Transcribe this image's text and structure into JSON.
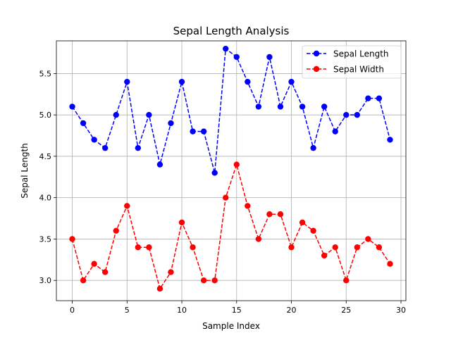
{
  "chart_data": {
    "type": "line",
    "title": "Sepal Length Analysis",
    "xlabel": "Sample Index",
    "ylabel": "Sepal Length",
    "xlim": [
      -1.45,
      30.45
    ],
    "ylim": [
      2.755,
      5.895
    ],
    "xticks": [
      0,
      5,
      10,
      15,
      20,
      25,
      30
    ],
    "yticks": [
      3.0,
      3.5,
      4.0,
      4.5,
      5.0,
      5.5
    ],
    "grid": true,
    "legend_position": "top-right",
    "x": [
      0,
      1,
      2,
      3,
      4,
      5,
      6,
      7,
      8,
      9,
      10,
      11,
      12,
      13,
      14,
      15,
      16,
      17,
      18,
      19,
      20,
      21,
      22,
      23,
      24,
      25,
      26,
      27,
      28,
      29
    ],
    "series": [
      {
        "name": "Sepal Length",
        "color": "#0000ff",
        "line_style": "dashed",
        "marker": "circle",
        "values": [
          5.1,
          4.9,
          4.7,
          4.6,
          5.0,
          5.4,
          4.6,
          5.0,
          4.4,
          4.9,
          5.4,
          4.8,
          4.8,
          4.3,
          5.8,
          5.7,
          5.4,
          5.1,
          5.7,
          5.1,
          5.4,
          5.1,
          4.6,
          5.1,
          4.8,
          5.0,
          5.0,
          5.2,
          5.2,
          4.7
        ]
      },
      {
        "name": "Sepal Width",
        "color": "#ff0000",
        "line_style": "dashed",
        "marker": "circle",
        "values": [
          3.5,
          3.0,
          3.2,
          3.1,
          3.6,
          3.9,
          3.4,
          3.4,
          2.9,
          3.1,
          3.7,
          3.4,
          3.0,
          3.0,
          4.0,
          4.4,
          3.9,
          3.5,
          3.8,
          3.8,
          3.4,
          3.7,
          3.6,
          3.3,
          3.4,
          3.0,
          3.4,
          3.5,
          3.4,
          3.2
        ]
      }
    ]
  }
}
